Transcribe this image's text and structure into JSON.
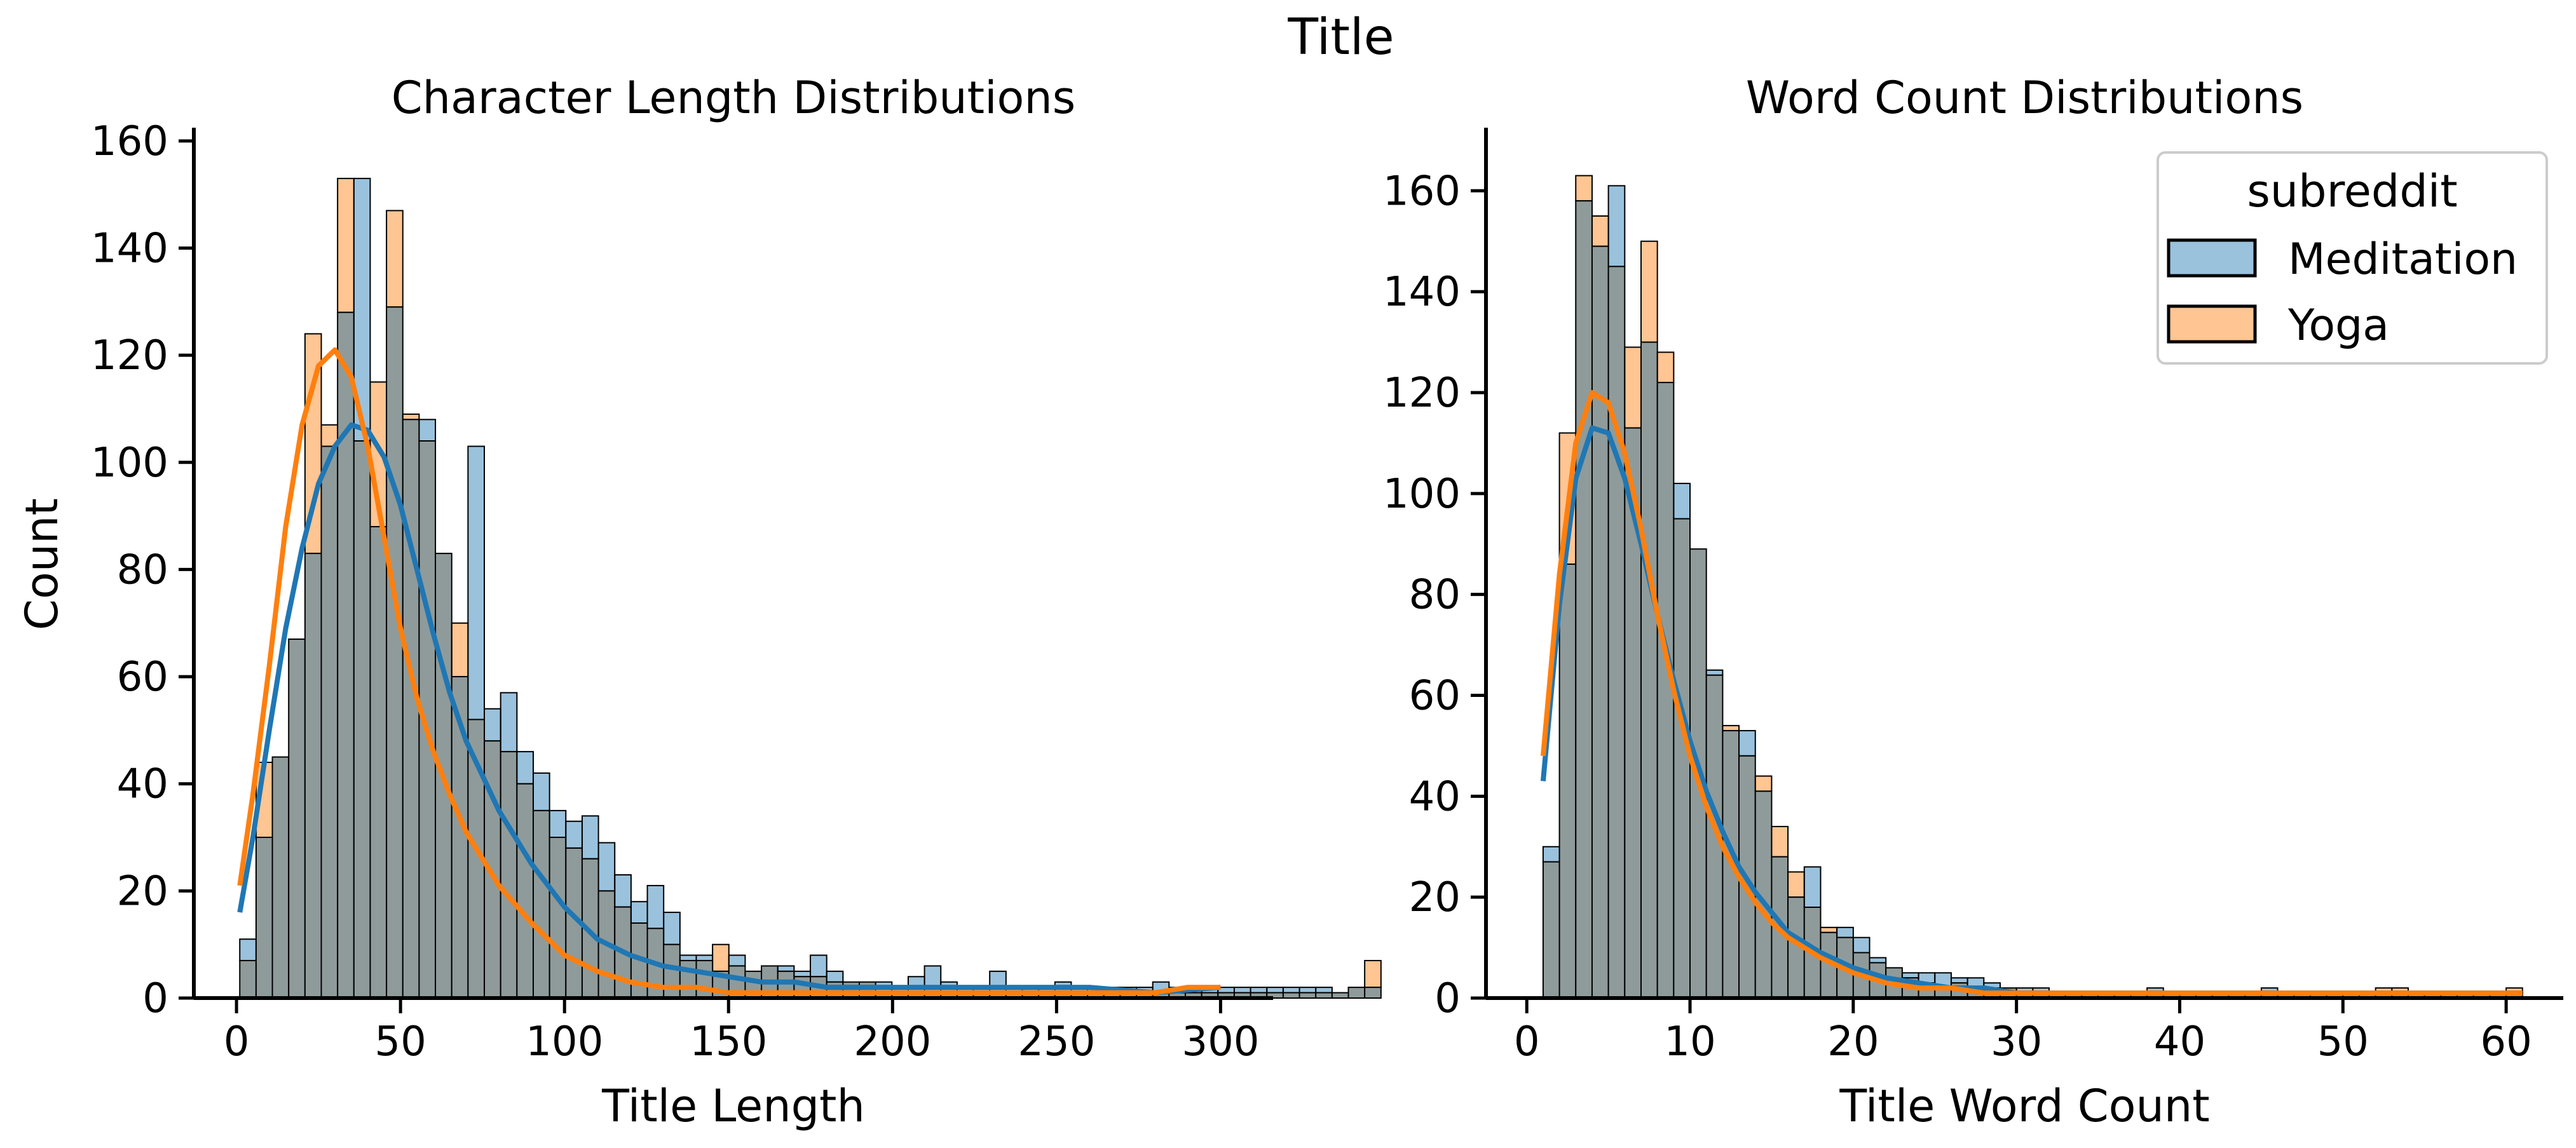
{
  "figure": {
    "title": "Title"
  },
  "colors": {
    "meditation": "#1f77b4",
    "yoga": "#ff7f0e",
    "overlap": "#8f9b9a",
    "edge": "#000000"
  },
  "chart_data": [
    {
      "type": "histogram",
      "title": "Character Length Distributions",
      "xlabel": "Title Length",
      "ylabel": "Count",
      "xlim": [
        -13,
        316
      ],
      "ylim": [
        0,
        162
      ],
      "xticks": [
        0,
        50,
        100,
        150,
        200,
        250,
        300
      ],
      "yticks": [
        0,
        20,
        40,
        60,
        80,
        100,
        120,
        140,
        160
      ],
      "bin_start": 1,
      "bin_width": 4.97,
      "series": [
        {
          "name": "Meditation",
          "values": [
            11,
            30,
            45,
            67,
            83,
            103,
            128,
            153,
            88,
            129,
            108,
            108,
            83,
            60,
            103,
            54,
            57,
            46,
            42,
            35,
            33,
            34,
            29,
            23,
            18,
            21,
            16,
            8,
            8,
            5,
            8,
            5,
            6,
            6,
            5,
            8,
            5,
            3,
            3,
            3,
            2,
            4,
            6,
            3,
            2,
            2,
            5,
            2,
            2,
            2,
            3,
            2,
            2,
            2,
            2,
            2,
            3,
            2,
            2,
            2,
            2,
            2,
            2,
            2,
            2,
            2,
            2,
            1,
            2,
            2
          ]
        },
        {
          "name": "Yoga",
          "values": [
            7,
            44,
            45,
            67,
            124,
            107,
            153,
            104,
            115,
            147,
            109,
            104,
            83,
            70,
            52,
            48,
            46,
            40,
            35,
            30,
            28,
            26,
            20,
            17,
            14,
            13,
            10,
            7,
            7,
            10,
            6,
            5,
            6,
            5,
            4,
            4,
            3,
            3,
            3,
            1,
            1,
            1,
            1,
            1,
            1,
            1,
            1,
            1,
            1,
            1,
            1,
            1,
            1,
            1,
            1,
            1,
            1,
            1,
            1,
            1,
            1,
            1,
            1,
            1,
            1,
            1,
            1,
            1,
            2,
            7
          ]
        }
      ],
      "kde": [
        {
          "name": "Meditation",
          "x": [
            1,
            5,
            10,
            15,
            20,
            25,
            30,
            35,
            40,
            45,
            50,
            55,
            60,
            65,
            70,
            80,
            90,
            100,
            110,
            120,
            130,
            140,
            150,
            160,
            170,
            180,
            200,
            220,
            240,
            260,
            280,
            300
          ],
          "y": [
            16,
            30,
            50,
            69,
            84,
            96,
            103,
            107,
            106,
            101,
            92,
            80,
            68,
            57,
            48,
            35,
            25,
            17,
            11,
            8,
            6,
            5,
            4,
            3,
            3,
            2,
            2,
            2,
            2,
            2,
            1,
            2
          ]
        },
        {
          "name": "Yoga",
          "x": [
            1,
            5,
            10,
            15,
            20,
            25,
            30,
            35,
            40,
            45,
            50,
            55,
            60,
            65,
            70,
            80,
            90,
            100,
            110,
            120,
            130,
            140,
            150,
            160,
            180,
            200,
            220,
            240,
            260,
            280,
            290,
            300
          ],
          "y": [
            21,
            38,
            62,
            88,
            107,
            118,
            121,
            116,
            103,
            86,
            69,
            56,
            46,
            38,
            31,
            21,
            14,
            8,
            5,
            3,
            2,
            2,
            1,
            1,
            1,
            1,
            1,
            1,
            1,
            1,
            2,
            2
          ]
        }
      ]
    },
    {
      "type": "histogram",
      "title": "Word Count Distributions",
      "xlabel": "Title Word Count",
      "ylabel": "",
      "xlim": [
        -2.5,
        63.5
      ],
      "ylim": [
        0,
        172
      ],
      "xticks": [
        0,
        10,
        20,
        30,
        40,
        50,
        60
      ],
      "yticks": [
        0,
        20,
        40,
        60,
        80,
        100,
        120,
        140,
        160
      ],
      "bin_start": 1,
      "bin_width": 1,
      "series": [
        {
          "name": "Meditation",
          "values": [
            30,
            86,
            158,
            149,
            161,
            113,
            130,
            122,
            102,
            89,
            65,
            53,
            53,
            41,
            28,
            20,
            26,
            13,
            14,
            12,
            8,
            6,
            5,
            5,
            5,
            4,
            4,
            3,
            2,
            2,
            2,
            1,
            1,
            1,
            1,
            1,
            1,
            2,
            1,
            1,
            1,
            1,
            1,
            1,
            2,
            1,
            1,
            1,
            1,
            1,
            1,
            1,
            1,
            1,
            1,
            1,
            1,
            1,
            1,
            1
          ]
        },
        {
          "name": "Yoga",
          "values": [
            27,
            112,
            163,
            155,
            145,
            129,
            150,
            128,
            95,
            89,
            64,
            54,
            48,
            44,
            34,
            25,
            18,
            14,
            12,
            9,
            7,
            6,
            4,
            3,
            2,
            3,
            2,
            2,
            2,
            1,
            1,
            1,
            1,
            1,
            1,
            1,
            1,
            1,
            1,
            1,
            1,
            1,
            1,
            1,
            1,
            1,
            1,
            1,
            1,
            1,
            1,
            2,
            2,
            1,
            1,
            1,
            1,
            1,
            1,
            2
          ]
        }
      ],
      "kde": [
        {
          "name": "Meditation",
          "x": [
            1,
            2,
            3,
            4,
            5,
            6,
            7,
            8,
            9,
            10,
            11,
            12,
            13,
            14,
            15,
            16,
            18,
            20,
            22,
            24,
            26,
            28,
            30,
            35,
            40,
            45,
            50,
            55,
            61
          ],
          "y": [
            43,
            78,
            103,
            113,
            112,
            103,
            90,
            76,
            63,
            51,
            41,
            33,
            26,
            21,
            17,
            13,
            9,
            6,
            4,
            3,
            2,
            2,
            1,
            1,
            1,
            1,
            1,
            1,
            1
          ]
        },
        {
          "name": "Yoga",
          "x": [
            1,
            2,
            3,
            4,
            5,
            6,
            7,
            8,
            9,
            10,
            11,
            12,
            13,
            14,
            15,
            16,
            18,
            20,
            22,
            24,
            26,
            28,
            30,
            35,
            40,
            45,
            50,
            55,
            61
          ],
          "y": [
            48,
            84,
            110,
            120,
            118,
            108,
            93,
            76,
            61,
            48,
            38,
            30,
            24,
            19,
            15,
            12,
            8,
            5,
            3,
            2,
            2,
            1,
            1,
            1,
            1,
            1,
            1,
            1,
            1
          ]
        }
      ]
    }
  ],
  "legend": {
    "title": "subreddit",
    "placement": "top-right",
    "entries": [
      "Meditation",
      "Yoga"
    ]
  }
}
